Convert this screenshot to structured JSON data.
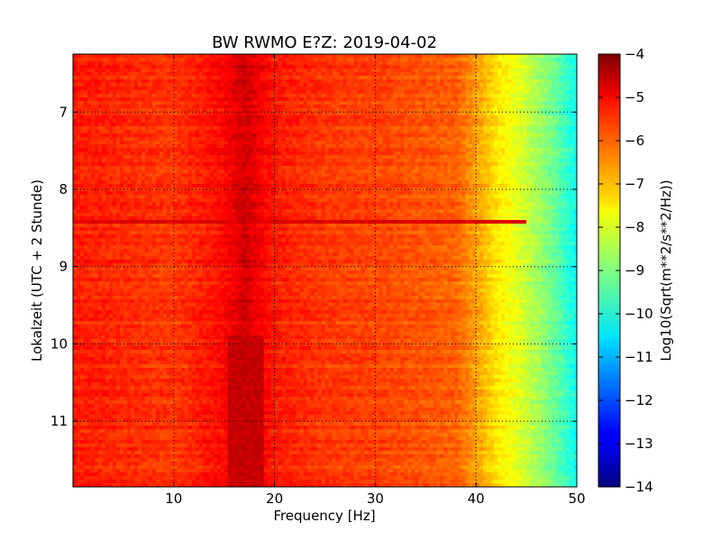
{
  "chart_data": {
    "type": "heatmap",
    "title": "BW RWMO E?Z: 2019-04-02",
    "xlabel": "Frequency [Hz]",
    "ylabel": "Lokalzeit (UTC + 2 Stunde)",
    "xlim": [
      0,
      50
    ],
    "ylim": [
      6.25,
      11.85
    ],
    "y_inverted": true,
    "x_ticks": [
      10,
      20,
      30,
      40,
      50
    ],
    "y_ticks": [
      7,
      8,
      9,
      10,
      11
    ],
    "grid": true,
    "colorscale": "jet",
    "colorbar": {
      "label": "Log10(Sqrt(m**2/s**2/Hz))",
      "range": [
        -14,
        -4
      ],
      "ticks": [
        -4,
        -5,
        -6,
        -7,
        -8,
        -9,
        -10,
        -11,
        -12,
        -13,
        -14
      ]
    },
    "value_profile_by_frequency": {
      "frequency_hz": [
        0,
        10,
        15,
        17,
        20,
        25,
        30,
        38,
        40,
        42,
        44,
        46,
        48,
        50
      ],
      "log10_amplitude": [
        -5.5,
        -5.8,
        -5.3,
        -4.8,
        -5.5,
        -5.8,
        -5.9,
        -6.2,
        -6.8,
        -7.5,
        -8.0,
        -8.6,
        -9.3,
        -10.2
      ]
    },
    "features": [
      {
        "frequency_hz": [
          15.5,
          19
        ],
        "time": [
          9.9,
          11.85
        ],
        "log10_amplitude": -4.7
      },
      {
        "frequency_hz": [
          0,
          45
        ],
        "time": [
          8.4,
          8.45
        ],
        "log10_amplitude": -4.9
      }
    ]
  }
}
